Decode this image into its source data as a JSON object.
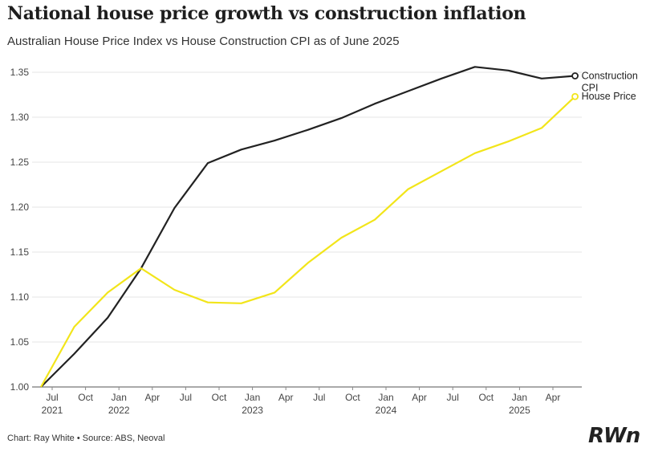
{
  "header": {
    "title": "National house price growth vs construction inflation",
    "subtitle": "Australian House Price Index vs House Construction CPI as of June 2025"
  },
  "footer": {
    "credit": "Chart: Ray White",
    "separator": "•",
    "source": "Source: ABS, Neoval",
    "logo": "RWn"
  },
  "colors": {
    "construction": "#222222",
    "house_price": "#f2e51a",
    "grid": "#e6e6e6"
  },
  "chart_data": {
    "type": "line",
    "title": "National house price growth vs construction inflation",
    "subtitle": "Australian House Price Index vs House Construction CPI as of June 2025",
    "xlabel": "",
    "ylabel": "",
    "ylim": [
      1.0,
      1.35
    ],
    "yticks": [
      "1.00",
      "1.05",
      "1.10",
      "1.15",
      "1.20",
      "1.25",
      "1.30",
      "1.35"
    ],
    "xticks": [
      {
        "label": "Jul",
        "year": "2021"
      },
      {
        "label": "Oct",
        "year": ""
      },
      {
        "label": "Jan",
        "year": "2022"
      },
      {
        "label": "Apr",
        "year": ""
      },
      {
        "label": "Jul",
        "year": ""
      },
      {
        "label": "Oct",
        "year": ""
      },
      {
        "label": "Jan",
        "year": "2023"
      },
      {
        "label": "Apr",
        "year": ""
      },
      {
        "label": "Jul",
        "year": ""
      },
      {
        "label": "Oct",
        "year": ""
      },
      {
        "label": "Jan",
        "year": "2024"
      },
      {
        "label": "Apr",
        "year": ""
      },
      {
        "label": "Jul",
        "year": ""
      },
      {
        "label": "Oct",
        "year": ""
      },
      {
        "label": "Jan",
        "year": "2025"
      },
      {
        "label": "Apr",
        "year": ""
      }
    ],
    "x": [
      "Jun 2021",
      "Sep 2021",
      "Dec 2021",
      "Mar 2022",
      "Jun 2022",
      "Sep 2022",
      "Dec 2022",
      "Mar 2023",
      "Jun 2023",
      "Sep 2023",
      "Dec 2023",
      "Mar 2024",
      "Jun 2024",
      "Sep 2024",
      "Dec 2024",
      "Mar 2025",
      "Jun 2025"
    ],
    "grid": true,
    "legend": "end-of-line labels, right",
    "series": [
      {
        "name": "Construction CPI",
        "name_lines": [
          "Construction",
          "CPI"
        ],
        "color": "#222222",
        "values": [
          1.0,
          1.037,
          1.077,
          1.132,
          1.199,
          1.249,
          1.264,
          1.274,
          1.286,
          1.299,
          1.315,
          1.329,
          1.343,
          1.356,
          1.352,
          1.343,
          1.346
        ]
      },
      {
        "name": "House Price",
        "name_lines": [
          "House Price"
        ],
        "color": "#f2e51a",
        "values": [
          1.0,
          1.067,
          1.105,
          1.132,
          1.108,
          1.094,
          1.093,
          1.105,
          1.138,
          1.166,
          1.186,
          1.22,
          1.24,
          1.26,
          1.273,
          1.288,
          1.323
        ]
      }
    ]
  }
}
